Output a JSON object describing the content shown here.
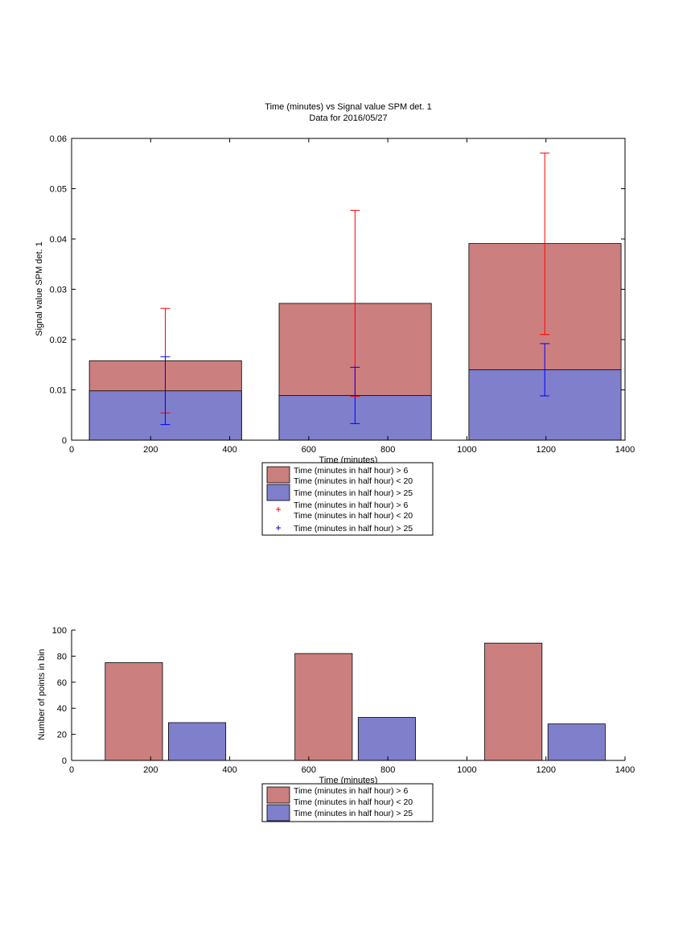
{
  "colors": {
    "red_bar": "#cc7f7f",
    "blue_bar": "#7f7fcc",
    "red_err": "#ff0000",
    "blue_err": "#0000ff",
    "axis": "#000000"
  },
  "chart_data": [
    {
      "type": "bar",
      "title": "Time (minutes) vs Signal value SPM det. 1",
      "subtitle": "Data for 2016/05/27",
      "xlabel": "Time (minutes)",
      "ylabel": "Signal value SPM det. 1",
      "xlim": [
        0,
        1400
      ],
      "ylim": [
        0,
        0.06
      ],
      "xticks": [
        0,
        200,
        400,
        600,
        800,
        1000,
        1200,
        1400
      ],
      "yticks": [
        0,
        0.01,
        0.02,
        0.03,
        0.04,
        0.05,
        0.06
      ],
      "xtick_labels": [
        "0",
        "200",
        "400",
        "600",
        "800",
        "1000",
        "1200",
        "1400"
      ],
      "ytick_labels": [
        "0",
        "0.01",
        "0.02",
        "0.03",
        "0.04",
        "0.05",
        "0.06"
      ],
      "bar_ranges": [
        [
          45,
          430
        ],
        [
          525,
          910
        ],
        [
          1005,
          1390
        ]
      ],
      "series": [
        {
          "name": "Time (minutes in half hour) > 6 Time (minutes in half hour) < 20",
          "legend_lines": [
            "Time (minutes in half hour) > 6",
            "Time (minutes in half hour) < 20"
          ],
          "color": "#cc7f7f",
          "values": [
            0.0158,
            0.0272,
            0.0391
          ]
        },
        {
          "name": "Time (minutes in half hour) > 25",
          "legend_lines": [
            "Time (minutes in half hour) > 25"
          ],
          "color": "#7f7fcc",
          "values": [
            0.0098,
            0.0089,
            0.014
          ]
        }
      ],
      "errorbars": [
        {
          "name": "Time (minutes in half hour) > 6 Time (minutes in half hour) < 20",
          "legend_lines": [
            "Time (minutes in half hour) > 6",
            "Time (minutes in half hour) < 20"
          ],
          "color": "#ff0000",
          "x": [
            237,
            717,
            1197
          ],
          "center": [
            0.0158,
            0.0272,
            0.0391
          ],
          "low": [
            0.0054,
            0.0087,
            0.021
          ],
          "high": [
            0.0262,
            0.0457,
            0.0571
          ]
        },
        {
          "name": "Time (minutes in half hour) > 25",
          "legend_lines": [
            "Time (minutes in half hour) > 25"
          ],
          "color": "#0000ff",
          "x": [
            237,
            717,
            1197
          ],
          "center": [
            0.0098,
            0.0089,
            0.014
          ],
          "low": [
            0.0031,
            0.0033,
            0.0088
          ],
          "high": [
            0.0166,
            0.0145,
            0.0192
          ]
        }
      ]
    },
    {
      "type": "bar",
      "title": "",
      "xlabel": "Time (minutes)",
      "ylabel": "Number of points in bin",
      "xlim": [
        0,
        1400
      ],
      "ylim": [
        0,
        100
      ],
      "xticks": [
        0,
        200,
        400,
        600,
        800,
        1000,
        1200,
        1400
      ],
      "yticks": [
        0,
        20,
        40,
        60,
        80,
        100
      ],
      "xtick_labels": [
        "0",
        "200",
        "400",
        "600",
        "800",
        "1000",
        "1200",
        "1400"
      ],
      "ytick_labels": [
        "0",
        "20",
        "40",
        "60",
        "80",
        "100"
      ],
      "series": [
        {
          "name": "Time (minutes in half hour) > 6 Time (minutes in half hour) < 20",
          "legend_lines": [
            "Time (minutes in half hour) > 6",
            "Time (minutes in half hour) < 20"
          ],
          "color": "#cc7f7f",
          "bar_ranges": [
            [
              85,
              230
            ],
            [
              565,
              710
            ],
            [
              1045,
              1190
            ]
          ],
          "values": [
            75,
            82,
            90
          ]
        },
        {
          "name": "Time (minutes in half hour) > 25",
          "legend_lines": [
            "Time (minutes in half hour) > 25"
          ],
          "color": "#7f7fcc",
          "bar_ranges": [
            [
              245,
              390
            ],
            [
              725,
              870
            ],
            [
              1205,
              1350
            ]
          ],
          "values": [
            29,
            33,
            28
          ]
        }
      ]
    }
  ]
}
